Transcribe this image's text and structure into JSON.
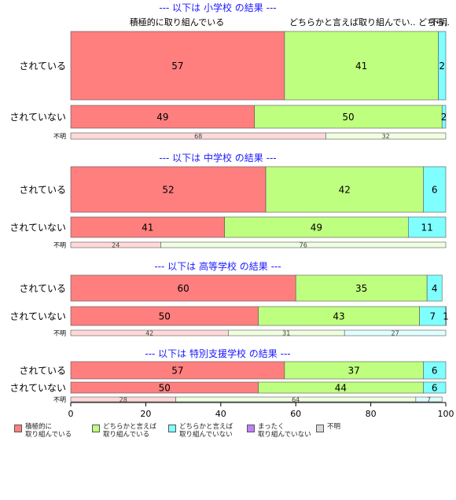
{
  "chart_data": {
    "type": "bar",
    "orientation": "horizontal",
    "stacked": true,
    "xlim": [
      0,
      100
    ],
    "xticks": [
      0,
      20,
      40,
      60,
      80,
      100
    ],
    "categories": [
      "積極的に\n取り組んでいる",
      "どちらかと言えば\n取り組んでいる",
      "どちらかと言えば\n取り組んでいない",
      "まったく\n取り組んでいない",
      "不明"
    ],
    "colors": [
      "#ff7f7f",
      "#bfff7f",
      "#7fffff",
      "#bf7fff",
      "#d9d9d9"
    ],
    "faded_colors": [
      "#ffd9d9",
      "#f0ffe0",
      "#e0ffff",
      "#f0e0ff",
      "#f0f0f0"
    ],
    "top_labels": [
      "積極的に取り組んでいる",
      "どちらかと言えば取り組んでい.. どちら..",
      "不明"
    ],
    "groups": [
      {
        "title": "--- 以下は 小学校 の結果 ---",
        "rows": [
          {
            "label": "されている",
            "values": [
              57,
              41,
              2,
              0,
              0
            ]
          },
          {
            "label": "されていない",
            "values": [
              49,
              50,
              2,
              0,
              0
            ]
          },
          {
            "label": "不明",
            "values": [
              68,
              32,
              0,
              0,
              0
            ]
          }
        ]
      },
      {
        "title": "--- 以下は 中学校 の結果 ---",
        "rows": [
          {
            "label": "されている",
            "values": [
              52,
              42,
              6,
              0,
              0
            ]
          },
          {
            "label": "されていない",
            "values": [
              41,
              49,
              11,
              0,
              0
            ]
          },
          {
            "label": "不明",
            "values": [
              24,
              76,
              0,
              0,
              0
            ]
          }
        ]
      },
      {
        "title": "--- 以下は 高等学校 の結果 ---",
        "rows": [
          {
            "label": "されている",
            "values": [
              60,
              35,
              4,
              0,
              0
            ]
          },
          {
            "label": "されていない",
            "values": [
              50,
              43,
              7,
              1,
              0
            ]
          },
          {
            "label": "不明",
            "values": [
              42,
              31,
              27,
              0,
              0
            ]
          }
        ]
      },
      {
        "title": "--- 以下は 特別支援学校 の結果 ---",
        "rows": [
          {
            "label": "されている",
            "values": [
              57,
              37,
              6,
              0,
              0
            ]
          },
          {
            "label": "されていない",
            "values": [
              50,
              44,
              6,
              0,
              0
            ]
          },
          {
            "label": "不明",
            "values": [
              28,
              64,
              7,
              0,
              0
            ]
          }
        ]
      }
    ]
  }
}
